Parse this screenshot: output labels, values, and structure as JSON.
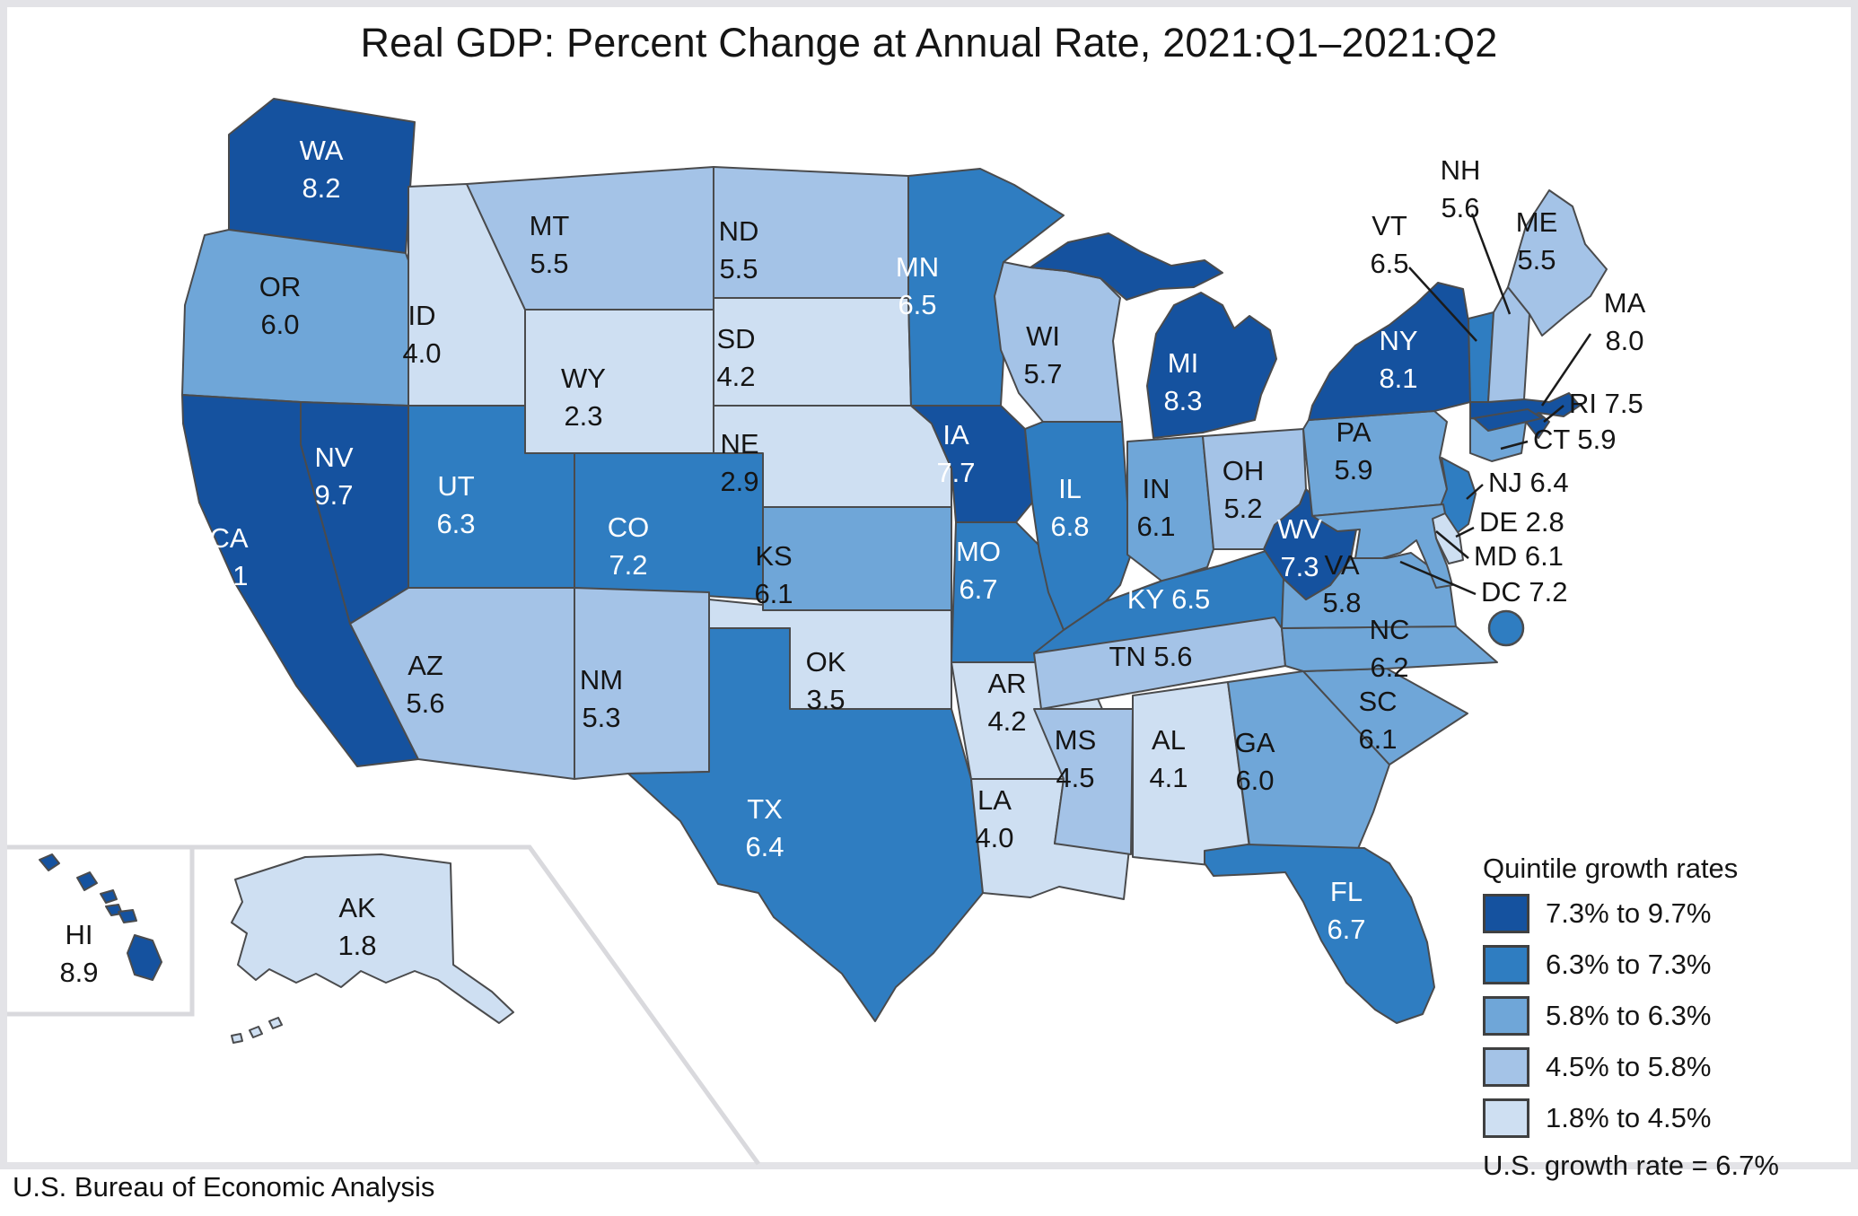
{
  "title": "Real GDP: Percent Change at Annual Rate, 2021:Q1–2021:Q2",
  "source": "U.S. Bureau of Economic Analysis",
  "legend": {
    "title": "Quintile growth rates",
    "entries": [
      {
        "label": "7.3% to 9.7%",
        "color": "#15529F"
      },
      {
        "label": "6.3% to 7.3%",
        "color": "#2F7DC1"
      },
      {
        "label": "5.8% to 6.3%",
        "color": "#6FA6D8"
      },
      {
        "label": "4.5% to 5.8%",
        "color": "#A4C3E7"
      },
      {
        "label": "1.8% to 4.5%",
        "color": "#CEDFF2"
      }
    ],
    "footnote": "U.S. growth rate = 6.7%"
  },
  "chart_data": {
    "type": "heatmap",
    "subtype": "us-state-choropleth",
    "title": "Real GDP: Percent Change at Annual Rate, 2021:Q1–2021:Q2",
    "unit": "%",
    "us_growth_rate": 6.7,
    "value_range": [
      1.8,
      9.7
    ],
    "quintile_bins": [
      "7.3% to 9.7%",
      "6.3% to 7.3%",
      "5.8% to 6.3%",
      "4.5% to 5.8%",
      "1.8% to 4.5%"
    ],
    "states": [
      {
        "abbr": "WA",
        "value": 8.2,
        "quintile": 1
      },
      {
        "abbr": "OR",
        "value": 6.0,
        "quintile": 3
      },
      {
        "abbr": "CA",
        "value": 8.1,
        "quintile": 1
      },
      {
        "abbr": "NV",
        "value": 9.7,
        "quintile": 1
      },
      {
        "abbr": "ID",
        "value": 4.0,
        "quintile": 5
      },
      {
        "abbr": "MT",
        "value": 5.5,
        "quintile": 4
      },
      {
        "abbr": "WY",
        "value": 2.3,
        "quintile": 5
      },
      {
        "abbr": "UT",
        "value": 6.3,
        "quintile": 2
      },
      {
        "abbr": "CO",
        "value": 7.2,
        "quintile": 2
      },
      {
        "abbr": "AZ",
        "value": 5.6,
        "quintile": 4
      },
      {
        "abbr": "NM",
        "value": 5.3,
        "quintile": 4
      },
      {
        "abbr": "ND",
        "value": 5.5,
        "quintile": 4
      },
      {
        "abbr": "SD",
        "value": 4.2,
        "quintile": 5
      },
      {
        "abbr": "NE",
        "value": 2.9,
        "quintile": 5
      },
      {
        "abbr": "KS",
        "value": 6.1,
        "quintile": 3
      },
      {
        "abbr": "OK",
        "value": 3.5,
        "quintile": 5
      },
      {
        "abbr": "TX",
        "value": 6.4,
        "quintile": 2
      },
      {
        "abbr": "MN",
        "value": 6.5,
        "quintile": 2
      },
      {
        "abbr": "IA",
        "value": 7.7,
        "quintile": 1
      },
      {
        "abbr": "MO",
        "value": 6.7,
        "quintile": 2
      },
      {
        "abbr": "AR",
        "value": 4.2,
        "quintile": 5
      },
      {
        "abbr": "LA",
        "value": 4.0,
        "quintile": 5
      },
      {
        "abbr": "WI",
        "value": 5.7,
        "quintile": 4
      },
      {
        "abbr": "IL",
        "value": 6.8,
        "quintile": 2
      },
      {
        "abbr": "IN",
        "value": 6.1,
        "quintile": 3
      },
      {
        "abbr": "OH",
        "value": 5.2,
        "quintile": 4
      },
      {
        "abbr": "MI",
        "value": 8.3,
        "quintile": 1
      },
      {
        "abbr": "KY",
        "value": 6.5,
        "quintile": 2
      },
      {
        "abbr": "TN",
        "value": 5.6,
        "quintile": 4
      },
      {
        "abbr": "MS",
        "value": 4.5,
        "quintile": 4
      },
      {
        "abbr": "AL",
        "value": 4.1,
        "quintile": 5
      },
      {
        "abbr": "GA",
        "value": 6.0,
        "quintile": 3
      },
      {
        "abbr": "FL",
        "value": 6.7,
        "quintile": 2
      },
      {
        "abbr": "SC",
        "value": 6.1,
        "quintile": 3
      },
      {
        "abbr": "NC",
        "value": 6.2,
        "quintile": 3
      },
      {
        "abbr": "VA",
        "value": 5.8,
        "quintile": 3
      },
      {
        "abbr": "WV",
        "value": 7.3,
        "quintile": 1
      },
      {
        "abbr": "PA",
        "value": 5.9,
        "quintile": 3
      },
      {
        "abbr": "NY",
        "value": 8.1,
        "quintile": 1
      },
      {
        "abbr": "NJ",
        "value": 6.4,
        "quintile": 2
      },
      {
        "abbr": "DE",
        "value": 2.8,
        "quintile": 5
      },
      {
        "abbr": "MD",
        "value": 6.1,
        "quintile": 3
      },
      {
        "abbr": "CT",
        "value": 5.9,
        "quintile": 3
      },
      {
        "abbr": "RI",
        "value": 7.5,
        "quintile": 1
      },
      {
        "abbr": "MA",
        "value": 8.0,
        "quintile": 1
      },
      {
        "abbr": "VT",
        "value": 6.5,
        "quintile": 2
      },
      {
        "abbr": "NH",
        "value": 5.6,
        "quintile": 4
      },
      {
        "abbr": "ME",
        "value": 5.5,
        "quintile": 4
      },
      {
        "abbr": "AK",
        "value": 1.8,
        "quintile": 5
      },
      {
        "abbr": "HI",
        "value": 8.9,
        "quintile": 1
      },
      {
        "abbr": "DC",
        "value": 7.2,
        "quintile": 2
      }
    ],
    "callout_states": [
      "NH",
      "VT",
      "MA",
      "RI",
      "CT",
      "NJ",
      "DE",
      "MD",
      "DC"
    ]
  }
}
